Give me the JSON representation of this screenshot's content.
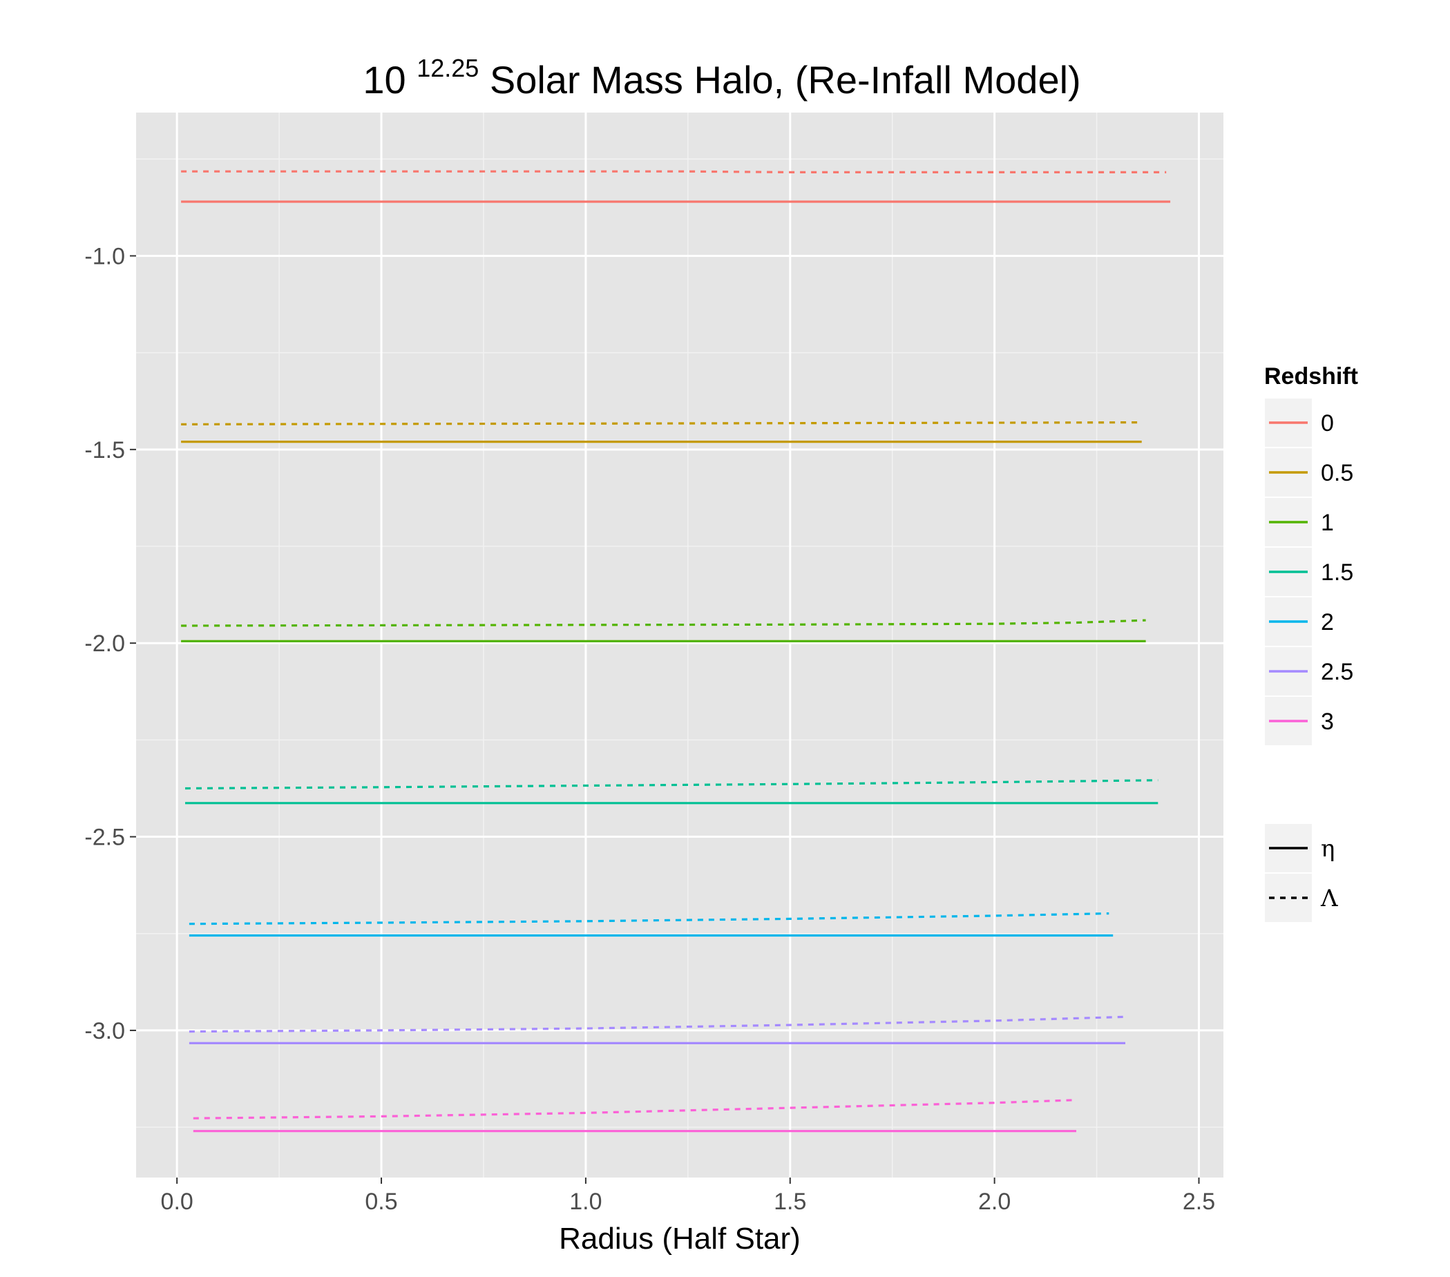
{
  "chart_data": {
    "type": "line",
    "title": {
      "base": "10",
      "exponent": "12.25",
      "rest": "Solar Mass Halo, (Re-Infall Model)"
    },
    "xlabel": "Radius (Half Star)",
    "ylabel": "",
    "xlim": [
      -0.1,
      2.56
    ],
    "ylim": [
      -3.38,
      -0.63
    ],
    "x_ticks": [
      0.0,
      0.5,
      1.0,
      1.5,
      2.0,
      2.5
    ],
    "x_tick_labels": [
      "0.0",
      "0.5",
      "1.0",
      "1.5",
      "2.0",
      "2.5"
    ],
    "y_ticks": [
      -1.0,
      -1.5,
      -2.0,
      -2.5,
      -3.0
    ],
    "y_tick_labels": [
      "-1.0",
      "-1.5",
      "-2.0",
      "-2.5",
      "-3.0"
    ],
    "grid": true,
    "legend_position": "right",
    "colors": {
      "panel_background": "#e5e5e5",
      "grid_major": "#ffffff",
      "grid_minor": "#f2f2f2"
    },
    "color_legend": {
      "title": "Redshift",
      "entries": [
        {
          "label": "0",
          "color": "#f8766d"
        },
        {
          "label": "0.5",
          "color": "#c49a00"
        },
        {
          "label": "1",
          "color": "#53b400"
        },
        {
          "label": "1.5",
          "color": "#00c094"
        },
        {
          "label": "2",
          "color": "#00b6eb"
        },
        {
          "label": "2.5",
          "color": "#a58aff"
        },
        {
          "label": "3",
          "color": "#fb61d7"
        }
      ]
    },
    "linetype_legend": {
      "entries": [
        {
          "label": "η",
          "linetype": "solid"
        },
        {
          "label": "Λ",
          "linetype": "dashed"
        }
      ]
    },
    "series": [
      {
        "redshift": "0",
        "linetype": "solid",
        "color": "#f8766d",
        "x": [
          0.01,
          2.43
        ],
        "y": [
          -0.86,
          -0.86
        ]
      },
      {
        "redshift": "0",
        "linetype": "dashed",
        "color": "#f8766d",
        "x": [
          0.01,
          1.0,
          1.25,
          1.5,
          2.0,
          2.42
        ],
        "y": [
          -0.782,
          -0.782,
          -0.782,
          -0.784,
          -0.784,
          -0.784
        ]
      },
      {
        "redshift": "0.5",
        "linetype": "solid",
        "color": "#c49a00",
        "x": [
          0.01,
          2.36
        ],
        "y": [
          -1.48,
          -1.48
        ]
      },
      {
        "redshift": "0.5",
        "linetype": "dashed",
        "color": "#c49a00",
        "x": [
          0.01,
          0.5,
          1.0,
          1.5,
          2.0,
          2.35
        ],
        "y": [
          -1.435,
          -1.434,
          -1.433,
          -1.432,
          -1.431,
          -1.43
        ]
      },
      {
        "redshift": "1",
        "linetype": "solid",
        "color": "#53b400",
        "x": [
          0.01,
          2.37
        ],
        "y": [
          -1.995,
          -1.995
        ]
      },
      {
        "redshift": "1",
        "linetype": "dashed",
        "color": "#53b400",
        "x": [
          0.01,
          0.5,
          1.0,
          1.5,
          2.0,
          2.2,
          2.37
        ],
        "y": [
          -1.955,
          -1.954,
          -1.953,
          -1.952,
          -1.95,
          -1.947,
          -1.941
        ]
      },
      {
        "redshift": "1.5",
        "linetype": "solid",
        "color": "#00c094",
        "x": [
          0.02,
          2.4
        ],
        "y": [
          -2.413,
          -2.413
        ]
      },
      {
        "redshift": "1.5",
        "linetype": "dashed",
        "color": "#00c094",
        "x": [
          0.02,
          0.5,
          1.0,
          1.5,
          2.0,
          2.4
        ],
        "y": [
          -2.375,
          -2.372,
          -2.368,
          -2.364,
          -2.359,
          -2.354
        ]
      },
      {
        "redshift": "2",
        "linetype": "solid",
        "color": "#00b6eb",
        "x": [
          0.03,
          2.29
        ],
        "y": [
          -2.755,
          -2.755
        ]
      },
      {
        "redshift": "2",
        "linetype": "dashed",
        "color": "#00b6eb",
        "x": [
          0.03,
          0.5,
          1.0,
          1.5,
          2.0,
          2.28
        ],
        "y": [
          -2.725,
          -2.722,
          -2.718,
          -2.712,
          -2.704,
          -2.698
        ]
      },
      {
        "redshift": "2.5",
        "linetype": "solid",
        "color": "#a58aff",
        "x": [
          0.03,
          2.32
        ],
        "y": [
          -3.033,
          -3.033
        ]
      },
      {
        "redshift": "2.5",
        "linetype": "dashed",
        "color": "#a58aff",
        "x": [
          0.03,
          0.5,
          1.0,
          1.5,
          2.0,
          2.32
        ],
        "y": [
          -3.003,
          -3.0,
          -2.995,
          -2.986,
          -2.975,
          -2.965
        ]
      },
      {
        "redshift": "3",
        "linetype": "solid",
        "color": "#fb61d7",
        "x": [
          0.04,
          2.2
        ],
        "y": [
          -3.26,
          -3.26
        ]
      },
      {
        "redshift": "3",
        "linetype": "dashed",
        "color": "#fb61d7",
        "x": [
          0.04,
          0.5,
          1.0,
          1.5,
          2.0,
          2.19
        ],
        "y": [
          -3.227,
          -3.222,
          -3.213,
          -3.2,
          -3.187,
          -3.18
        ]
      }
    ]
  }
}
